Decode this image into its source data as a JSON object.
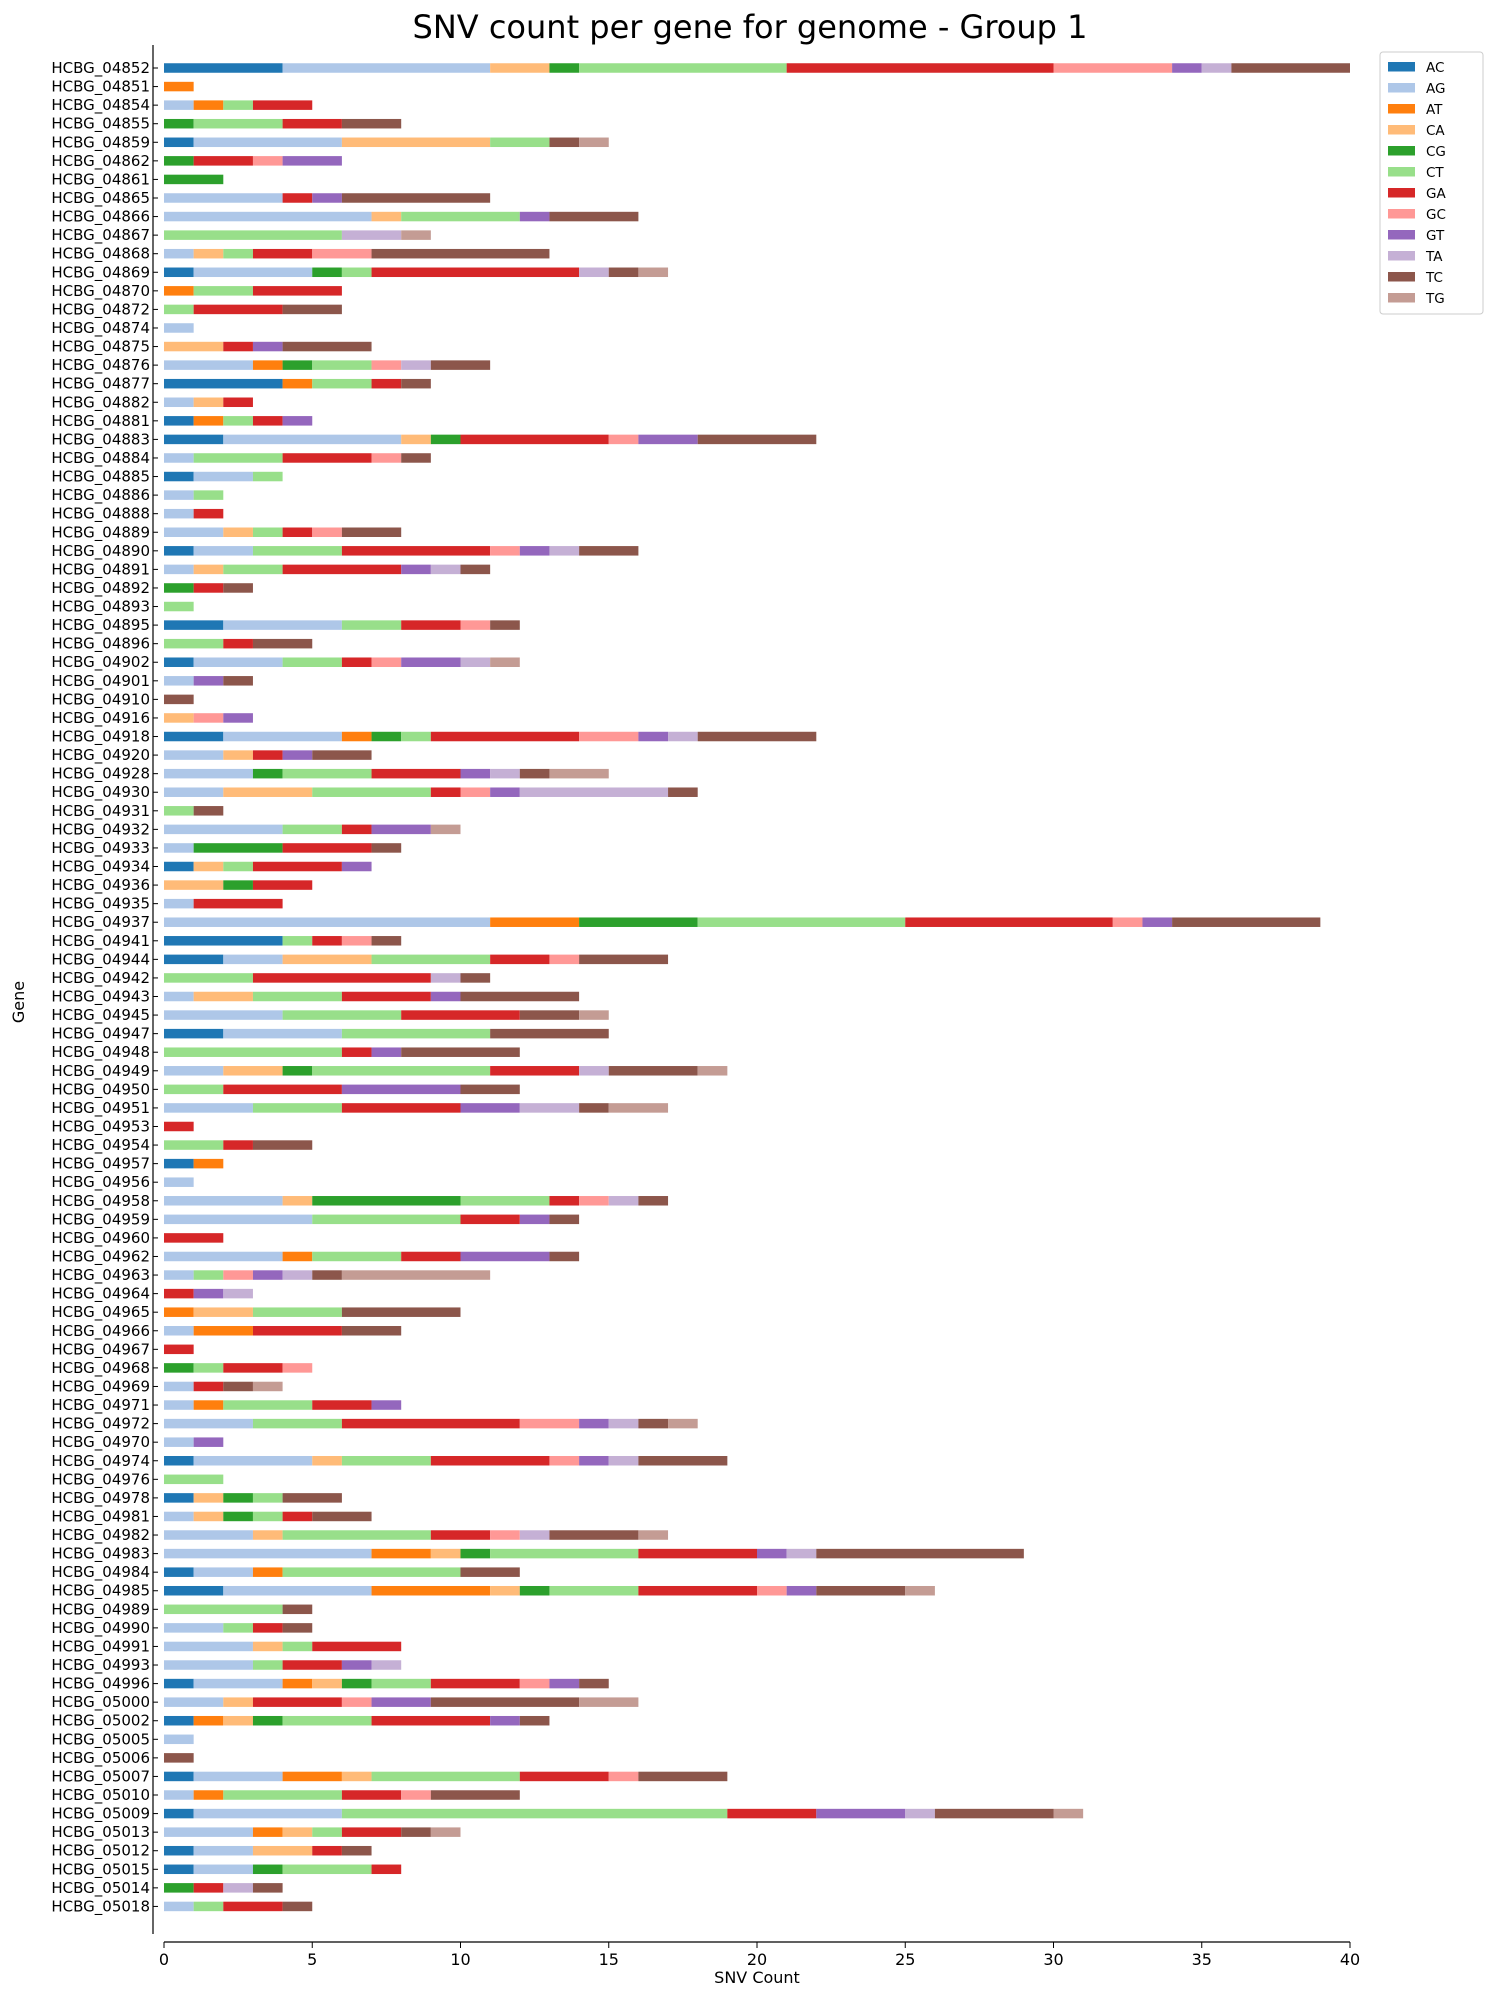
{
  "chart_data": {
    "type": "bar",
    "orientation": "horizontal",
    "stacked": true,
    "title": "SNV count per gene for genome - Group 1",
    "xlabel": "SNV Count",
    "ylabel": "Gene",
    "xlim": [
      0,
      40
    ],
    "xticks": [
      0,
      5,
      10,
      15,
      20,
      25,
      30,
      35,
      40
    ],
    "grid": false,
    "legend_position": "top-right",
    "series": [
      {
        "name": "AC",
        "color": "#1f77b4"
      },
      {
        "name": "AG",
        "color": "#aec7e8"
      },
      {
        "name": "AT",
        "color": "#ff7f0e"
      },
      {
        "name": "CA",
        "color": "#ffbb78"
      },
      {
        "name": "CG",
        "color": "#2ca02c"
      },
      {
        "name": "CT",
        "color": "#98df8a"
      },
      {
        "name": "GA",
        "color": "#d62728"
      },
      {
        "name": "GC",
        "color": "#ff9896"
      },
      {
        "name": "GT",
        "color": "#9467bd"
      },
      {
        "name": "TA",
        "color": "#c5b0d5"
      },
      {
        "name": "TC",
        "color": "#8c564b"
      },
      {
        "name": "TG",
        "color": "#c49c94"
      }
    ],
    "categories": [
      "HCBG_04852",
      "HCBG_04851",
      "HCBG_04854",
      "HCBG_04855",
      "HCBG_04859",
      "HCBG_04862",
      "HCBG_04861",
      "HCBG_04865",
      "HCBG_04866",
      "HCBG_04867",
      "HCBG_04868",
      "HCBG_04869",
      "HCBG_04870",
      "HCBG_04872",
      "HCBG_04874",
      "HCBG_04875",
      "HCBG_04876",
      "HCBG_04877",
      "HCBG_04882",
      "HCBG_04881",
      "HCBG_04883",
      "HCBG_04884",
      "HCBG_04885",
      "HCBG_04886",
      "HCBG_04888",
      "HCBG_04889",
      "HCBG_04890",
      "HCBG_04891",
      "HCBG_04892",
      "HCBG_04893",
      "HCBG_04895",
      "HCBG_04896",
      "HCBG_04902",
      "HCBG_04901",
      "HCBG_04910",
      "HCBG_04916",
      "HCBG_04918",
      "HCBG_04920",
      "HCBG_04928",
      "HCBG_04930",
      "HCBG_04931",
      "HCBG_04932",
      "HCBG_04933",
      "HCBG_04934",
      "HCBG_04936",
      "HCBG_04935",
      "HCBG_04937",
      "HCBG_04941",
      "HCBG_04944",
      "HCBG_04942",
      "HCBG_04943",
      "HCBG_04945",
      "HCBG_04947",
      "HCBG_04948",
      "HCBG_04949",
      "HCBG_04950",
      "HCBG_04951",
      "HCBG_04953",
      "HCBG_04954",
      "HCBG_04957",
      "HCBG_04956",
      "HCBG_04958",
      "HCBG_04959",
      "HCBG_04960",
      "HCBG_04962",
      "HCBG_04963",
      "HCBG_04964",
      "HCBG_04965",
      "HCBG_04966",
      "HCBG_04967",
      "HCBG_04968",
      "HCBG_04969",
      "HCBG_04971",
      "HCBG_04972",
      "HCBG_04970",
      "HCBG_04974",
      "HCBG_04976",
      "HCBG_04978",
      "HCBG_04981",
      "HCBG_04982",
      "HCBG_04983",
      "HCBG_04984",
      "HCBG_04985",
      "HCBG_04989",
      "HCBG_04990",
      "HCBG_04991",
      "HCBG_04993",
      "HCBG_04996",
      "HCBG_05000",
      "HCBG_05002",
      "HCBG_05005",
      "HCBG_05006",
      "HCBG_05007",
      "HCBG_05010",
      "HCBG_05009",
      "HCBG_05013",
      "HCBG_05012",
      "HCBG_05015",
      "HCBG_05014",
      "HCBG_05018"
    ],
    "values": [
      [
        4,
        7,
        0,
        2,
        1,
        7,
        9,
        4,
        1,
        1,
        4,
        0
      ],
      [
        0,
        0,
        1,
        0,
        0,
        0,
        0,
        0,
        0,
        0,
        0,
        0
      ],
      [
        0,
        1,
        1,
        0,
        0,
        1,
        2,
        0,
        0,
        0,
        0,
        0
      ],
      [
        0,
        0,
        0,
        0,
        1,
        3,
        2,
        0,
        0,
        0,
        2,
        0
      ],
      [
        1,
        5,
        0,
        5,
        0,
        2,
        0,
        0,
        0,
        0,
        1,
        1
      ],
      [
        0,
        0,
        0,
        0,
        1,
        0,
        2,
        1,
        2,
        0,
        0,
        0
      ],
      [
        0,
        0,
        0,
        0,
        2,
        0,
        0,
        0,
        0,
        0,
        0,
        0
      ],
      [
        0,
        4,
        0,
        0,
        0,
        0,
        1,
        0,
        1,
        0,
        5,
        0
      ],
      [
        0,
        7,
        0,
        1,
        0,
        4,
        0,
        0,
        1,
        0,
        3,
        0
      ],
      [
        0,
        0,
        0,
        0,
        0,
        6,
        0,
        0,
        0,
        2,
        0,
        1
      ],
      [
        0,
        1,
        0,
        1,
        0,
        1,
        2,
        2,
        0,
        0,
        6,
        0
      ],
      [
        1,
        4,
        0,
        0,
        1,
        1,
        7,
        0,
        0,
        1,
        1,
        1
      ],
      [
        0,
        0,
        1,
        0,
        0,
        2,
        3,
        0,
        0,
        0,
        0,
        0
      ],
      [
        0,
        0,
        0,
        0,
        0,
        1,
        3,
        0,
        0,
        0,
        2,
        0
      ],
      [
        0,
        1,
        0,
        0,
        0,
        0,
        0,
        0,
        0,
        0,
        0,
        0
      ],
      [
        0,
        0,
        0,
        2,
        0,
        0,
        1,
        0,
        1,
        0,
        3,
        0
      ],
      [
        0,
        3,
        1,
        0,
        1,
        2,
        0,
        1,
        0,
        1,
        2,
        0
      ],
      [
        4,
        0,
        1,
        0,
        0,
        2,
        1,
        0,
        0,
        0,
        1,
        0
      ],
      [
        0,
        1,
        0,
        1,
        0,
        0,
        1,
        0,
        0,
        0,
        0,
        0
      ],
      [
        1,
        0,
        1,
        0,
        0,
        1,
        1,
        0,
        1,
        0,
        0,
        0
      ],
      [
        2,
        6,
        0,
        1,
        1,
        0,
        5,
        1,
        2,
        0,
        4,
        0
      ],
      [
        0,
        1,
        0,
        0,
        0,
        3,
        3,
        1,
        0,
        0,
        1,
        0
      ],
      [
        1,
        2,
        0,
        0,
        0,
        1,
        0,
        0,
        0,
        0,
        0,
        0
      ],
      [
        0,
        1,
        0,
        0,
        0,
        1,
        0,
        0,
        0,
        0,
        0,
        0
      ],
      [
        0,
        1,
        0,
        0,
        0,
        0,
        1,
        0,
        0,
        0,
        0,
        0
      ],
      [
        0,
        2,
        0,
        1,
        0,
        1,
        1,
        1,
        0,
        0,
        2,
        0
      ],
      [
        1,
        2,
        0,
        0,
        0,
        3,
        5,
        1,
        1,
        1,
        2,
        0
      ],
      [
        0,
        1,
        0,
        1,
        0,
        2,
        4,
        0,
        1,
        1,
        1,
        0
      ],
      [
        0,
        0,
        0,
        0,
        1,
        0,
        1,
        0,
        0,
        0,
        1,
        0
      ],
      [
        0,
        0,
        0,
        0,
        0,
        1,
        0,
        0,
        0,
        0,
        0,
        0
      ],
      [
        2,
        4,
        0,
        0,
        0,
        2,
        2,
        1,
        0,
        0,
        1,
        0
      ],
      [
        0,
        0,
        0,
        0,
        0,
        2,
        1,
        0,
        0,
        0,
        2,
        0
      ],
      [
        1,
        3,
        0,
        0,
        0,
        2,
        1,
        1,
        2,
        1,
        0,
        1
      ],
      [
        0,
        1,
        0,
        0,
        0,
        0,
        0,
        0,
        1,
        0,
        1,
        0
      ],
      [
        0,
        0,
        0,
        0,
        0,
        0,
        0,
        0,
        0,
        0,
        1,
        0
      ],
      [
        0,
        0,
        0,
        1,
        0,
        0,
        0,
        1,
        1,
        0,
        0,
        0
      ],
      [
        2,
        4,
        1,
        0,
        1,
        1,
        5,
        2,
        1,
        1,
        4,
        0
      ],
      [
        0,
        2,
        0,
        1,
        0,
        0,
        1,
        0,
        1,
        0,
        2,
        0
      ],
      [
        0,
        3,
        0,
        0,
        1,
        3,
        3,
        0,
        1,
        1,
        1,
        2
      ],
      [
        0,
        2,
        0,
        3,
        0,
        4,
        1,
        1,
        1,
        5,
        1,
        0
      ],
      [
        0,
        0,
        0,
        0,
        0,
        1,
        0,
        0,
        0,
        0,
        1,
        0
      ],
      [
        0,
        4,
        0,
        0,
        0,
        2,
        1,
        0,
        2,
        0,
        0,
        1
      ],
      [
        0,
        1,
        0,
        0,
        3,
        0,
        3,
        0,
        0,
        0,
        1,
        0
      ],
      [
        1,
        0,
        0,
        1,
        0,
        1,
        3,
        0,
        1,
        0,
        0,
        0
      ],
      [
        0,
        0,
        0,
        2,
        1,
        0,
        2,
        0,
        0,
        0,
        0,
        0
      ],
      [
        0,
        1,
        0,
        0,
        0,
        0,
        3,
        0,
        0,
        0,
        0,
        0
      ],
      [
        0,
        11,
        3,
        0,
        4,
        7,
        7,
        1,
        1,
        0,
        5,
        0
      ],
      [
        4,
        0,
        0,
        0,
        0,
        1,
        1,
        1,
        0,
        0,
        1,
        0
      ],
      [
        2,
        2,
        0,
        3,
        0,
        4,
        2,
        1,
        0,
        0,
        3,
        0
      ],
      [
        0,
        0,
        0,
        0,
        0,
        3,
        6,
        0,
        0,
        1,
        1,
        0
      ],
      [
        0,
        1,
        0,
        2,
        0,
        3,
        3,
        0,
        1,
        0,
        4,
        0
      ],
      [
        0,
        4,
        0,
        0,
        0,
        4,
        4,
        0,
        0,
        0,
        2,
        1
      ],
      [
        2,
        4,
        0,
        0,
        0,
        5,
        0,
        0,
        0,
        0,
        4,
        0
      ],
      [
        0,
        0,
        0,
        0,
        0,
        6,
        1,
        0,
        1,
        0,
        4,
        0
      ],
      [
        0,
        2,
        0,
        2,
        1,
        6,
        3,
        0,
        0,
        1,
        3,
        1
      ],
      [
        0,
        0,
        0,
        0,
        0,
        2,
        4,
        0,
        4,
        0,
        2,
        0
      ],
      [
        0,
        3,
        0,
        0,
        0,
        3,
        4,
        0,
        2,
        2,
        1,
        2
      ],
      [
        0,
        0,
        0,
        0,
        0,
        0,
        1,
        0,
        0,
        0,
        0,
        0
      ],
      [
        0,
        0,
        0,
        0,
        0,
        2,
        1,
        0,
        0,
        0,
        2,
        0
      ],
      [
        1,
        0,
        1,
        0,
        0,
        0,
        0,
        0,
        0,
        0,
        0,
        0
      ],
      [
        0,
        1,
        0,
        0,
        0,
        0,
        0,
        0,
        0,
        0,
        0,
        0
      ],
      [
        0,
        4,
        0,
        1,
        5,
        3,
        1,
        1,
        0,
        1,
        1,
        0
      ],
      [
        0,
        5,
        0,
        0,
        0,
        5,
        2,
        0,
        1,
        0,
        1,
        0
      ],
      [
        0,
        0,
        0,
        0,
        0,
        0,
        2,
        0,
        0,
        0,
        0,
        0
      ],
      [
        0,
        4,
        1,
        0,
        0,
        3,
        2,
        0,
        3,
        0,
        1,
        0
      ],
      [
        0,
        1,
        0,
        0,
        0,
        1,
        0,
        1,
        1,
        1,
        1,
        5
      ],
      [
        0,
        0,
        0,
        0,
        0,
        0,
        1,
        0,
        1,
        1,
        0,
        0
      ],
      [
        0,
        0,
        1,
        2,
        0,
        3,
        0,
        0,
        0,
        0,
        4,
        0
      ],
      [
        0,
        1,
        2,
        0,
        0,
        0,
        3,
        0,
        0,
        0,
        2,
        0
      ],
      [
        0,
        0,
        0,
        0,
        0,
        0,
        1,
        0,
        0,
        0,
        0,
        0
      ],
      [
        0,
        0,
        0,
        0,
        1,
        1,
        2,
        1,
        0,
        0,
        0,
        0
      ],
      [
        0,
        1,
        0,
        0,
        0,
        0,
        1,
        0,
        0,
        0,
        1,
        1
      ],
      [
        0,
        1,
        1,
        0,
        0,
        3,
        2,
        0,
        1,
        0,
        0,
        0
      ],
      [
        0,
        3,
        0,
        0,
        0,
        3,
        6,
        2,
        1,
        1,
        1,
        1
      ],
      [
        0,
        1,
        0,
        0,
        0,
        0,
        0,
        0,
        1,
        0,
        0,
        0
      ],
      [
        1,
        4,
        0,
        1,
        0,
        3,
        4,
        1,
        1,
        1,
        3,
        0
      ],
      [
        0,
        0,
        0,
        0,
        0,
        2,
        0,
        0,
        0,
        0,
        0,
        0
      ],
      [
        1,
        0,
        0,
        1,
        1,
        1,
        0,
        0,
        0,
        0,
        2,
        0
      ],
      [
        0,
        1,
        0,
        1,
        1,
        1,
        1,
        0,
        0,
        0,
        2,
        0
      ],
      [
        0,
        3,
        0,
        1,
        0,
        5,
        2,
        1,
        0,
        1,
        3,
        1
      ],
      [
        0,
        7,
        2,
        1,
        1,
        5,
        4,
        0,
        1,
        1,
        7,
        0
      ],
      [
        1,
        2,
        1,
        0,
        0,
        6,
        0,
        0,
        0,
        0,
        2,
        0
      ],
      [
        2,
        5,
        4,
        1,
        1,
        3,
        4,
        1,
        1,
        0,
        3,
        1
      ],
      [
        0,
        0,
        0,
        0,
        0,
        4,
        0,
        0,
        0,
        0,
        1,
        0
      ],
      [
        0,
        2,
        0,
        0,
        0,
        1,
        1,
        0,
        0,
        0,
        1,
        0
      ],
      [
        0,
        3,
        0,
        1,
        0,
        1,
        3,
        0,
        0,
        0,
        0,
        0
      ],
      [
        0,
        3,
        0,
        0,
        0,
        1,
        2,
        0,
        1,
        1,
        0,
        0
      ],
      [
        1,
        3,
        1,
        1,
        1,
        2,
        3,
        1,
        1,
        0,
        1,
        0
      ],
      [
        0,
        2,
        0,
        1,
        0,
        0,
        3,
        1,
        2,
        0,
        5,
        2
      ],
      [
        1,
        0,
        1,
        1,
        1,
        3,
        4,
        0,
        1,
        0,
        1,
        0
      ],
      [
        0,
        1,
        0,
        0,
        0,
        0,
        0,
        0,
        0,
        0,
        0,
        0
      ],
      [
        0,
        0,
        0,
        0,
        0,
        0,
        0,
        0,
        0,
        0,
        1,
        0
      ],
      [
        1,
        3,
        2,
        1,
        0,
        5,
        3,
        1,
        0,
        0,
        3,
        0
      ],
      [
        0,
        1,
        1,
        0,
        0,
        4,
        2,
        1,
        0,
        0,
        3,
        0
      ],
      [
        1,
        5,
        0,
        0,
        0,
        13,
        3,
        0,
        3,
        1,
        4,
        1
      ],
      [
        0,
        3,
        1,
        1,
        0,
        1,
        2,
        0,
        0,
        0,
        1,
        1
      ],
      [
        1,
        2,
        0,
        2,
        0,
        0,
        1,
        0,
        0,
        0,
        1,
        0
      ],
      [
        1,
        2,
        0,
        0,
        1,
        3,
        1,
        0,
        0,
        0,
        0,
        0
      ],
      [
        0,
        0,
        0,
        0,
        1,
        0,
        1,
        0,
        0,
        1,
        1,
        0
      ],
      [
        0,
        1,
        0,
        0,
        0,
        1,
        2,
        0,
        0,
        0,
        1,
        0
      ]
    ]
  }
}
